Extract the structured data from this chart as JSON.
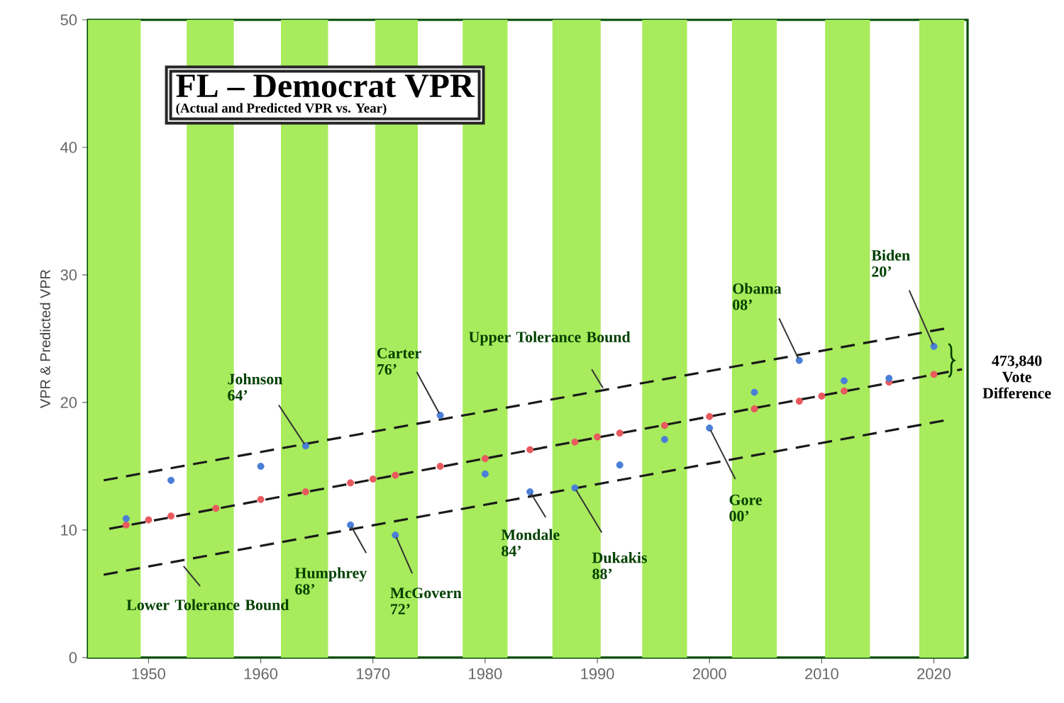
{
  "chart_data": {
    "type": "scatter",
    "title": "FL – Democrat VPR",
    "subtitle": "(Actual and Predicted VPR vs. Year)",
    "ylabel": "VPR & Predicted VPR",
    "xlim": [
      1944.6,
      2023
    ],
    "ylim": [
      0,
      50
    ],
    "xticks": [
      1950,
      1960,
      1970,
      1980,
      1990,
      2000,
      2010,
      2020
    ],
    "yticks": [
      0,
      10,
      20,
      30,
      40,
      50
    ],
    "bands": [
      {
        "axis": "x",
        "from": 1944.6,
        "to": 1949.3,
        "color": "#a8eb5c"
      },
      {
        "axis": "x",
        "from": 1953.4,
        "to": 1957.6,
        "color": "#a8eb5c"
      },
      {
        "axis": "x",
        "from": 1961.8,
        "to": 1966.0,
        "color": "#a8eb5c"
      },
      {
        "axis": "x",
        "from": 1970.2,
        "to": 1974.0,
        "color": "#a8eb5c"
      },
      {
        "axis": "x",
        "from": 1978.0,
        "to": 1982.0,
        "color": "#a8eb5c"
      },
      {
        "axis": "x",
        "from": 1986.0,
        "to": 1990.3,
        "color": "#a8eb5c"
      },
      {
        "axis": "x",
        "from": 1994.0,
        "to": 1998.0,
        "color": "#a8eb5c"
      },
      {
        "axis": "x",
        "from": 2002.0,
        "to": 2006.0,
        "color": "#a8eb5c"
      },
      {
        "axis": "x",
        "from": 2010.3,
        "to": 2014.3,
        "color": "#a8eb5c"
      },
      {
        "axis": "x",
        "from": 2018.7,
        "to": 2022.7,
        "color": "#a8eb5c"
      }
    ],
    "series": [
      {
        "type": "line",
        "color": "#1a1a1a",
        "line_style": "dashed",
        "marker": "none",
        "x": [
          1946,
          2021
        ],
        "values": [
          13.9,
          25.8
        ]
      },
      {
        "type": "line",
        "color": "#1a1a1a",
        "line_style": "dashed",
        "marker": "none",
        "x": [
          1946,
          2021
        ],
        "values": [
          6.5,
          18.6
        ]
      },
      {
        "type": "line",
        "color": "#1a1a1a",
        "line_style": "dashed",
        "marker": "none",
        "x": [
          1946.5,
          2022.5
        ],
        "values": [
          10.1,
          22.6
        ]
      },
      {
        "color": "#e8595e",
        "marker": "circle",
        "x": [
          1948,
          1950,
          1952,
          1956,
          1960,
          1964,
          1968,
          1970,
          1972,
          1976,
          1980,
          1984,
          1988,
          1990,
          1992,
          1996,
          2000,
          2004,
          2008,
          2010,
          2012,
          2016,
          2020
        ],
        "values": [
          10.4,
          10.8,
          11.1,
          11.7,
          12.4,
          13.0,
          13.7,
          14.0,
          14.3,
          15.0,
          15.6,
          16.3,
          16.9,
          17.3,
          17.6,
          18.2,
          18.9,
          19.5,
          20.1,
          20.5,
          20.9,
          21.6,
          22.2
        ]
      },
      {
        "color": "#4a7fd8",
        "marker": "circle",
        "x": [
          1948,
          1952,
          1960,
          1964,
          1968,
          1972,
          1976,
          1980,
          1984,
          1988,
          1992,
          1996,
          2000,
          2004,
          2008,
          2012,
          2016,
          2020
        ],
        "values": [
          10.9,
          13.9,
          15.0,
          16.6,
          10.4,
          9.6,
          19.0,
          14.4,
          13.0,
          13.3,
          15.1,
          17.1,
          18.0,
          20.8,
          23.3,
          21.7,
          21.9,
          24.4
        ]
      }
    ],
    "annotations": [
      {
        "text": "Johnson 64’",
        "x": 1964,
        "y": 16.6
      },
      {
        "text": "Carter 76’",
        "x": 1976,
        "y": 19.0
      },
      {
        "text": "Humphrey 68’",
        "x": 1968,
        "y": 10.4
      },
      {
        "text": "McGovern 72’",
        "x": 1972,
        "y": 9.6
      },
      {
        "text": "Mondale 84’",
        "x": 1984,
        "y": 13.0
      },
      {
        "text": "Dukakis 88’",
        "x": 1988,
        "y": 13.3
      },
      {
        "text": "Gore 00’",
        "x": 2000,
        "y": 18.0
      },
      {
        "text": "Obama 08’",
        "x": 2008,
        "y": 23.3
      },
      {
        "text": "Biden 20’",
        "x": 2020,
        "y": 24.4
      },
      {
        "text": "Upper Tolerance Bound",
        "x": 1990.6,
        "y": 21.0
      },
      {
        "text": "Lower Tolerance Bound",
        "x": 1953,
        "y": 7.3
      },
      "473,840 Vote Difference"
    ]
  }
}
